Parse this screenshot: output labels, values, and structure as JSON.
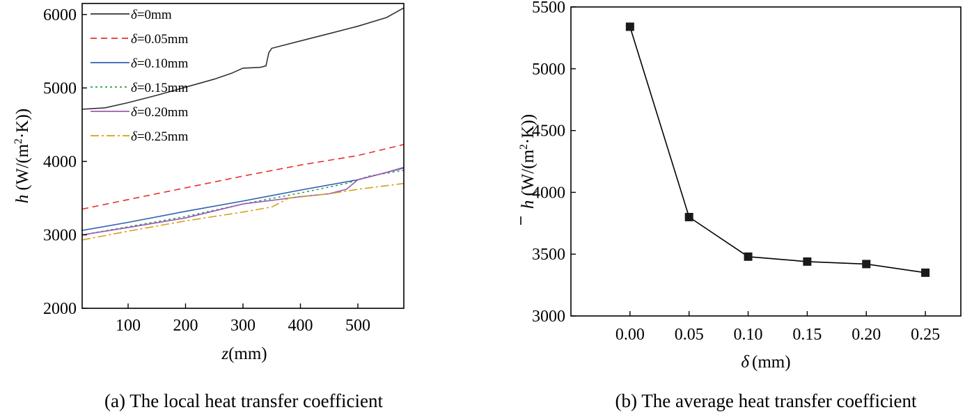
{
  "chart_data": [
    {
      "type": "line",
      "caption": "(a) The local heat transfer coefficient",
      "xlabel": {
        "var": "z",
        "unit": "(mm)"
      },
      "ylabel": {
        "var": "h",
        "unit": "(W/(m",
        "sup": "2",
        "unit2": "·K))"
      },
      "xlim": [
        20,
        580
      ],
      "ylim": [
        2000,
        6200
      ],
      "xticks": [
        100,
        200,
        300,
        400,
        500
      ],
      "yticks": [
        2000,
        3000,
        4000,
        5000,
        6000
      ],
      "legend_position": "top-left",
      "series": [
        {
          "name": "δ=0mm",
          "sym": "δ",
          "label_rest": "=0mm",
          "color": "#333333",
          "dash": "",
          "x": [
            20,
            60,
            100,
            150,
            200,
            250,
            280,
            300,
            330,
            340,
            345,
            350,
            400,
            450,
            500,
            550,
            580
          ],
          "y": [
            4710,
            4730,
            4800,
            4900,
            5010,
            5120,
            5200,
            5270,
            5280,
            5300,
            5480,
            5540,
            5640,
            5740,
            5840,
            5960,
            6090
          ]
        },
        {
          "name": "δ=0.05mm",
          "sym": "δ",
          "label_rest": "=0.05mm",
          "color": "#e8302a",
          "dash": "9,6",
          "x": [
            20,
            100,
            200,
            300,
            400,
            500,
            580
          ],
          "y": [
            3350,
            3480,
            3640,
            3800,
            3950,
            4080,
            4230
          ]
        },
        {
          "name": "δ=0.10mm",
          "sym": "δ",
          "label_rest": "=0.10mm",
          "color": "#2f5fb3",
          "dash": "",
          "x": [
            20,
            100,
            200,
            300,
            400,
            500,
            580
          ],
          "y": [
            3060,
            3170,
            3320,
            3460,
            3610,
            3750,
            3910
          ]
        },
        {
          "name": "δ=0.15mm",
          "sym": "δ",
          "label_rest": "=0.15mm",
          "color": "#2e9e4a",
          "dash": "3,4",
          "x": [
            20,
            100,
            200,
            300,
            400,
            480,
            520,
            580
          ],
          "y": [
            3000,
            3110,
            3250,
            3420,
            3570,
            3700,
            3800,
            3880
          ]
        },
        {
          "name": "δ=0.20mm",
          "sym": "δ",
          "label_rest": "=0.20mm",
          "color": "#9b59b6",
          "dash": "",
          "x": [
            20,
            100,
            200,
            300,
            350,
            400,
            450,
            480,
            500,
            550,
            580
          ],
          "y": [
            3000,
            3100,
            3230,
            3420,
            3470,
            3520,
            3560,
            3620,
            3750,
            3850,
            3920
          ]
        },
        {
          "name": "δ=0.25mm",
          "sym": "δ",
          "label_rest": "=0.25mm",
          "color": "#d4a017",
          "dash": "12,4,3,4",
          "x": [
            20,
            100,
            200,
            300,
            350,
            380,
            450,
            500,
            580
          ],
          "y": [
            2930,
            3050,
            3190,
            3310,
            3380,
            3500,
            3560,
            3620,
            3700
          ]
        }
      ]
    },
    {
      "type": "line",
      "caption": "(b) The average heat transfer coefficient",
      "xlabel": {
        "var": "δ",
        "unit": "(mm)"
      },
      "ylabel": {
        "var": "h",
        "unit": "(W/(m",
        "sup": "2",
        "unit2": "·K))"
      },
      "xlim": [
        -0.05,
        0.28
      ],
      "ylim": [
        3000,
        5500
      ],
      "xticks": [
        0.0,
        0.05,
        0.1,
        0.15,
        0.2,
        0.25
      ],
      "xtick_labels": [
        "0.00",
        "0.05",
        "0.10",
        "0.15",
        "0.20",
        "0.25"
      ],
      "yticks": [
        3000,
        3500,
        4000,
        4500,
        5000,
        5500
      ],
      "series": [
        {
          "name": "average h",
          "marker": "square",
          "color": "#000000",
          "x": [
            0.0,
            0.05,
            0.1,
            0.15,
            0.2,
            0.25
          ],
          "y": [
            5340,
            3800,
            3480,
            3440,
            3420,
            3350
          ]
        }
      ]
    }
  ]
}
